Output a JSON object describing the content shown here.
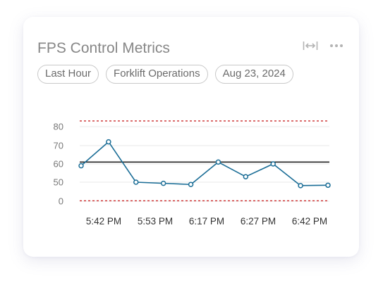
{
  "card": {
    "title": "FPS Control Metrics",
    "icons": [
      "expand-horizontal-icon",
      "more-options-icon"
    ]
  },
  "filters": [
    {
      "label": "Last Hour"
    },
    {
      "label": "Forklift Operations"
    },
    {
      "label": "Aug 23, 2024"
    }
  ],
  "colors": {
    "series": "#1a6d96",
    "control_limit": "#cc2a2a",
    "center_line": "#111111",
    "grid": "#e9e9e9"
  },
  "chart_data": {
    "type": "line",
    "title": "",
    "xlabel": "",
    "ylabel": "",
    "y_ticks": [
      0,
      50,
      60,
      70,
      80
    ],
    "x_tick_labels": [
      "5:42 PM",
      "5:53 PM",
      "6:17 PM",
      "6:27 PM",
      "6:42 PM"
    ],
    "series": [
      {
        "values": [
          59,
          72,
          50,
          47,
          44,
          61,
          53,
          60,
          41,
          42
        ]
      }
    ],
    "reference_lines": [
      {
        "kind": "upper-control-limit",
        "value": 83,
        "style": "dashed"
      },
      {
        "kind": "center-line",
        "value": 61,
        "style": "solid"
      },
      {
        "kind": "lower-control-limit",
        "value": 1,
        "style": "dashed"
      }
    ],
    "grid": true,
    "legend": "none"
  }
}
